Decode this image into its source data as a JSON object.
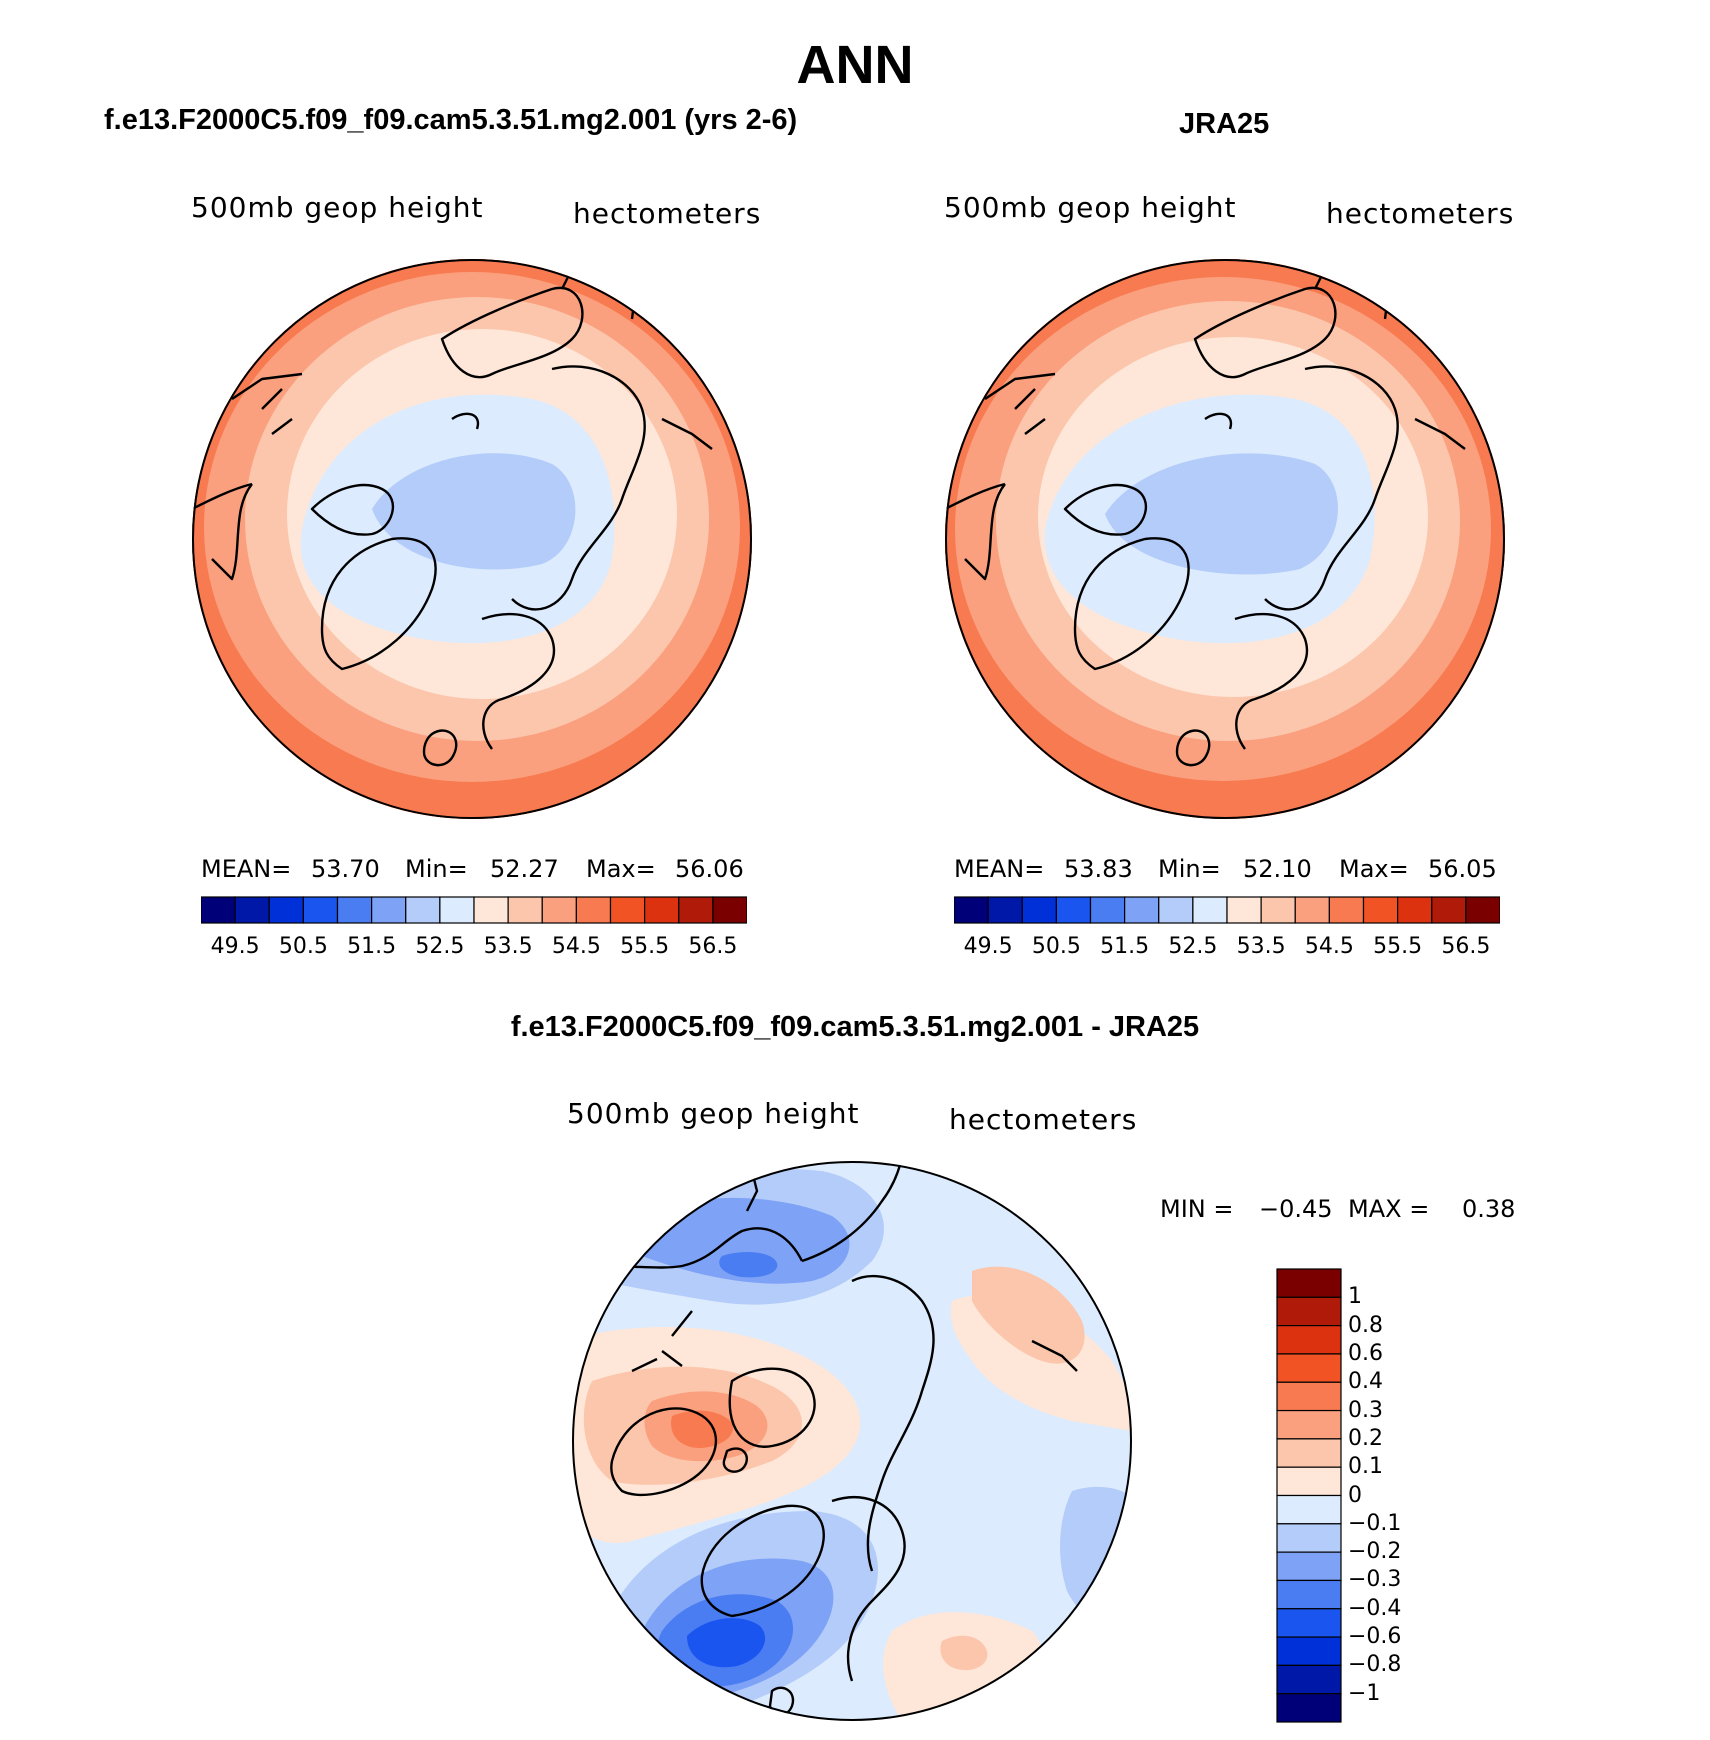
{
  "title": "ANN",
  "panels": {
    "left": {
      "title": "f.e13.F2000C5.f09_f09.cam5.3.51.mg2.001 (yrs 2-6)",
      "field_label": "500mb geop height",
      "units_label": "hectometers",
      "stats": {
        "mean_label": "MEAN=",
        "mean": "53.70",
        "min_label": "Min=",
        "min": "52.27",
        "max_label": "Max=",
        "max": "56.06"
      }
    },
    "right": {
      "title": "JRA25",
      "field_label": "500mb geop height",
      "units_label": "hectometers",
      "stats": {
        "mean_label": "MEAN=",
        "mean": "53.83",
        "min_label": "Min=",
        "min": "52.10",
        "max_label": "Max=",
        "max": "56.05"
      }
    },
    "diff": {
      "title": "f.e13.F2000C5.f09_f09.cam5.3.51.mg2.001 - JRA25",
      "field_label": "500mb geop height",
      "units_label": "hectometers",
      "stats": {
        "min_label": "MIN =",
        "min": "−0.45",
        "max_label": "MAX =",
        "max": "0.38"
      }
    }
  },
  "colorbars": {
    "abs": {
      "colors": [
        "#000078",
        "#0018a8",
        "#0030d8",
        "#1a55f0",
        "#4a7cf2",
        "#7ea2f6",
        "#b4ccfa",
        "#dcebfd",
        "#fee7d8",
        "#fcc6ac",
        "#faa07e",
        "#f87a50",
        "#f15325",
        "#dc3210",
        "#b01a08",
        "#7a0000"
      ],
      "tick_labels": [
        "49.5",
        "50.5",
        "51.5",
        "52.5",
        "53.5",
        "54.5",
        "55.5",
        "56.5"
      ]
    },
    "diff": {
      "colors_top_to_bottom": [
        "#7a0000",
        "#b01a08",
        "#dc3210",
        "#f15325",
        "#f87a50",
        "#faa07e",
        "#fcc6ac",
        "#fee7d8",
        "#dcebfd",
        "#b4ccfa",
        "#7ea2f6",
        "#4a7cf2",
        "#1a55f0",
        "#0030d8",
        "#0018a8",
        "#000078"
      ],
      "tick_labels": [
        "1",
        "0.8",
        "0.6",
        "0.4",
        "0.3",
        "0.2",
        "0.1",
        "0",
        "−0.1",
        "−0.2",
        "−0.3",
        "−0.4",
        "−0.6",
        "−0.8",
        "−1"
      ]
    }
  }
}
